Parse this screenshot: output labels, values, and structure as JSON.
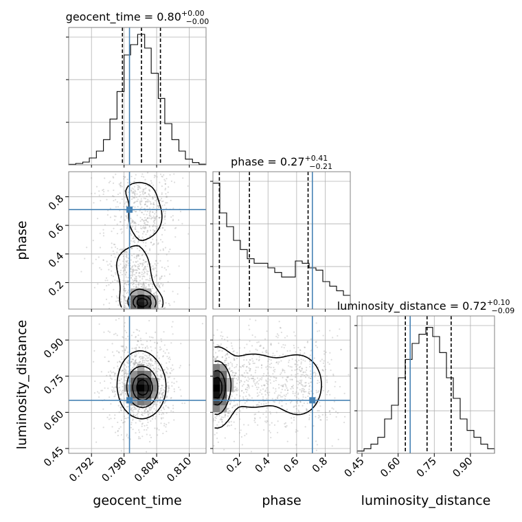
{
  "chart_data": {
    "type": "corner",
    "parameters": [
      "geocent_time",
      "phase",
      "luminosity_distance"
    ],
    "axis_labels": {
      "x": [
        "geocent_time",
        "phase",
        "luminosity_distance"
      ],
      "y": [
        "phase",
        "luminosity_distance"
      ]
    },
    "ranges": {
      "geocent_time": [
        0.7878,
        0.8131
      ],
      "phase": [
        0.015,
        0.975
      ],
      "luminosity_distance": [
        0.43,
        1.0
      ]
    },
    "truths": {
      "geocent_time": 0.799,
      "phase": 0.71,
      "luminosity_distance": 0.65
    },
    "ticks": {
      "geocent_time": {
        "values": [
          0.792,
          0.798,
          0.804,
          0.81
        ],
        "labels": [
          "0.792",
          "0.798",
          "0.804",
          "0.810"
        ]
      },
      "phase": {
        "values": [
          0.2,
          0.4,
          0.6,
          0.8
        ],
        "labels": [
          "0.2",
          "0.4",
          "0.6",
          "0.8"
        ]
      },
      "luminosity_distance": {
        "values": [
          0.45,
          0.6,
          0.75,
          0.9
        ],
        "labels": [
          "0.45",
          "0.60",
          "0.75",
          "0.90"
        ]
      }
    },
    "titles": [
      {
        "param": "geocent_time",
        "label": "geocent_time",
        "median": "0.80",
        "plus": "+0.00",
        "minus": "−0.00"
      },
      {
        "param": "phase",
        "label": "phase",
        "median": "0.27",
        "plus": "+0.41",
        "minus": "−0.21"
      },
      {
        "param": "luminosity_distance",
        "label": "luminosity_distance",
        "median": "0.72",
        "plus": "+0.10",
        "minus": "−0.09"
      }
    ],
    "quantiles": {
      "geocent_time": [
        0.7977,
        0.8012,
        0.8047
      ],
      "phase": [
        0.06,
        0.27,
        0.68
      ],
      "luminosity_distance": [
        0.63,
        0.72,
        0.82
      ]
    },
    "histograms": {
      "geocent_time": {
        "edges": [
          0.7878,
          0.7891,
          0.7904,
          0.7916,
          0.7929,
          0.7942,
          0.7954,
          0.7967,
          0.798,
          0.7992,
          0.8005,
          0.8018,
          0.803,
          0.8043,
          0.8055,
          0.8068,
          0.8081,
          0.8093,
          0.8106,
          0.8118,
          0.8131
        ],
        "counts": [
          0.2,
          0.6,
          1.2,
          3.0,
          6.0,
          11.0,
          20.0,
          32.0,
          48.0,
          52.5,
          57.0,
          51.0,
          40.0,
          29.0,
          18.0,
          11.0,
          6.0,
          2.5,
          1.0,
          0.3
        ],
        "ylim": [
          0,
          60
        ]
      },
      "phase": {
        "edges": [
          0.015,
          0.063,
          0.111,
          0.159,
          0.207,
          0.255,
          0.303,
          0.351,
          0.399,
          0.447,
          0.495,
          0.543,
          0.591,
          0.639,
          0.687,
          0.735,
          0.783,
          0.831,
          0.879,
          0.927,
          0.975
        ],
        "counts": [
          55,
          42,
          36,
          30,
          26,
          22,
          20,
          20,
          18,
          16,
          14,
          14,
          21,
          20,
          18,
          17,
          12,
          10,
          8,
          6
        ],
        "ylim": [
          0,
          60
        ]
      },
      "luminosity_distance": {
        "edges": [
          0.43,
          0.4585,
          0.487,
          0.5155,
          0.544,
          0.5725,
          0.601,
          0.6295,
          0.658,
          0.6865,
          0.715,
          0.7435,
          0.772,
          0.8005,
          0.829,
          0.8575,
          0.886,
          0.9145,
          0.943,
          0.9715,
          1.0
        ],
        "counts": [
          1,
          2,
          4,
          7,
          15,
          21,
          33,
          41,
          48,
          52,
          55,
          51,
          44,
          33,
          24,
          15,
          10,
          7,
          4,
          2
        ],
        "ylim": [
          0,
          60
        ]
      }
    },
    "title_label_style": "quantile_plus_minus",
    "colors": {
      "truth": "#4682b4",
      "hist": "#000000",
      "grid": "#b0b0b0",
      "dens": "#000000"
    },
    "densities": {
      "phase|geocent_time": {
        "components": [
          {
            "w": 0.28,
            "mx": 0.80145,
            "my": 0.055,
            "sx": 0.0018,
            "sy": 0.05,
            "r": 0.0
          },
          {
            "w": 0.18,
            "mx": 0.8005,
            "my": 0.14,
            "sx": 0.0022,
            "sy": 0.09,
            "r": 0.0
          },
          {
            "w": 0.16,
            "mx": 0.7995,
            "my": 0.33,
            "sx": 0.0025,
            "sy": 0.09,
            "r": 0.0
          },
          {
            "w": 0.22,
            "mx": 0.802,
            "my": 0.66,
            "sx": 0.0022,
            "sy": 0.1,
            "r": 0.0
          },
          {
            "w": 0.1,
            "mx": 0.8005,
            "my": 0.85,
            "sx": 0.003,
            "sy": 0.07,
            "r": 0.0
          },
          {
            "w": 0.06,
            "mx": 0.8,
            "my": 0.5,
            "sx": 0.0035,
            "sy": 0.2,
            "r": 0.0
          }
        ]
      },
      "luminosity_distance|geocent_time": {
        "components": [
          {
            "w": 0.55,
            "mx": 0.8015,
            "my": 0.7,
            "sx": 0.0019,
            "sy": 0.055,
            "r": 0.0
          },
          {
            "w": 0.45,
            "mx": 0.8008,
            "my": 0.73,
            "sx": 0.0028,
            "sy": 0.095,
            "r": 0.0
          }
        ]
      },
      "luminosity_distance|phase": {
        "components": [
          {
            "w": 0.4,
            "mx": 0.04,
            "my": 0.7,
            "sx": 0.06,
            "sy": 0.08,
            "r": 0.0
          },
          {
            "w": 0.22,
            "mx": 0.28,
            "my": 0.73,
            "sx": 0.14,
            "sy": 0.08,
            "r": 0.0
          },
          {
            "w": 0.2,
            "mx": 0.62,
            "my": 0.71,
            "sx": 0.1,
            "sy": 0.08,
            "r": 0.0
          },
          {
            "w": 0.18,
            "mx": 0.45,
            "my": 0.74,
            "sx": 0.3,
            "sy": 0.12,
            "r": 0.0
          }
        ]
      }
    },
    "contour_levels": [
      0.118,
      0.393,
      0.675,
      0.865
    ],
    "density_grid_note": "2D panels: filled grayscale density with four contour levels plus scattered samples"
  }
}
